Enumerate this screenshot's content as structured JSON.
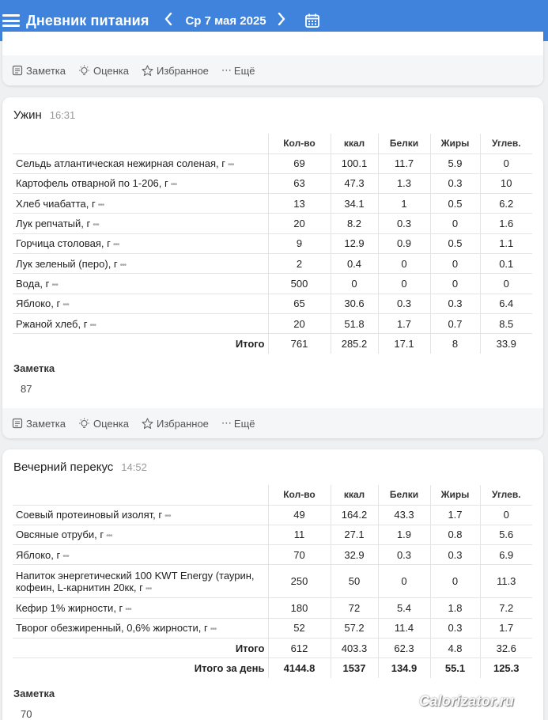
{
  "header": {
    "title": "Дневник питания",
    "date": "Ср 7 мая 2025",
    "prev_icon": "chevron-left-icon",
    "next_icon": "chevron-right-icon",
    "calendar_icon": "calendar-icon",
    "menu_icon": "menu-icon"
  },
  "actions": {
    "note": "Заметка",
    "rating": "Оценка",
    "favorite": "Избранное",
    "more": "Ещё"
  },
  "columns": [
    "Кол-во",
    "ккал",
    "Белки",
    "Жиры",
    "Углев."
  ],
  "dinner": {
    "name": "Ужин",
    "time": "16:31",
    "rows": [
      {
        "name": "Сельдь атлантическая нежирная соленая, г",
        "qty": "69",
        "kcal": "100.1",
        "protein": "11.7",
        "fat": "5.9",
        "carbs": "0"
      },
      {
        "name": "Картофель отварной по 1-206, г",
        "qty": "63",
        "kcal": "47.3",
        "protein": "1.3",
        "fat": "0.3",
        "carbs": "10"
      },
      {
        "name": "Хлеб чиабатта, г",
        "qty": "13",
        "kcal": "34.1",
        "protein": "1",
        "fat": "0.5",
        "carbs": "6.2"
      },
      {
        "name": "Лук репчатый, г",
        "qty": "20",
        "kcal": "8.2",
        "protein": "0.3",
        "fat": "0",
        "carbs": "1.6"
      },
      {
        "name": "Горчица столовая, г",
        "qty": "9",
        "kcal": "12.9",
        "protein": "0.9",
        "fat": "0.5",
        "carbs": "1.1"
      },
      {
        "name": "Лук зеленый (перо), г",
        "qty": "2",
        "kcal": "0.4",
        "protein": "0",
        "fat": "0",
        "carbs": "0.1"
      },
      {
        "name": "Вода, г",
        "qty": "500",
        "kcal": "0",
        "protein": "0",
        "fat": "0",
        "carbs": "0"
      },
      {
        "name": "Яблоко, г",
        "qty": "65",
        "kcal": "30.6",
        "protein": "0.3",
        "fat": "0.3",
        "carbs": "6.4"
      },
      {
        "name": "Ржаной хлеб, г",
        "qty": "20",
        "kcal": "51.8",
        "protein": "1.7",
        "fat": "0.7",
        "carbs": "8.5"
      }
    ],
    "total": {
      "label": "Итого",
      "qty": "761",
      "kcal": "285.2",
      "protein": "17.1",
      "fat": "8",
      "carbs": "33.9"
    },
    "note_label": "Заметка",
    "note_text": "87"
  },
  "snack": {
    "name": "Вечерний перекус",
    "time": "14:52",
    "rows": [
      {
        "name": "Соевый протеиновый изолят, г",
        "qty": "49",
        "kcal": "164.2",
        "protein": "43.3",
        "fat": "1.7",
        "carbs": "0"
      },
      {
        "name": "Овсяные отруби, г",
        "qty": "11",
        "kcal": "27.1",
        "protein": "1.9",
        "fat": "0.8",
        "carbs": "5.6"
      },
      {
        "name": "Яблоко, г",
        "qty": "70",
        "kcal": "32.9",
        "protein": "0.3",
        "fat": "0.3",
        "carbs": "6.9"
      },
      {
        "name": "Напиток энергетический 100 KWT Energy (таурин, кофеин, L-карнитин 20кк, г",
        "qty": "250",
        "kcal": "50",
        "protein": "0",
        "fat": "0",
        "carbs": "11.3"
      },
      {
        "name": "Кефир 1% жирности, г",
        "qty": "180",
        "kcal": "72",
        "protein": "5.4",
        "fat": "1.8",
        "carbs": "7.2"
      },
      {
        "name": "Творог обезжиренный, 0,6% жирности, г",
        "qty": "52",
        "kcal": "57.2",
        "protein": "11.4",
        "fat": "0.3",
        "carbs": "1.7"
      }
    ],
    "total": {
      "label": "Итого",
      "qty": "612",
      "kcal": "403.3",
      "protein": "62.3",
      "fat": "4.8",
      "carbs": "32.6"
    },
    "day_total": {
      "label": "Итого за день",
      "qty": "4144.8",
      "kcal": "1537",
      "protein": "134.9",
      "fat": "55.1",
      "carbs": "125.3"
    },
    "note_label": "Заметка",
    "note_text": "70"
  },
  "watermark": "Calorizator.ru"
}
